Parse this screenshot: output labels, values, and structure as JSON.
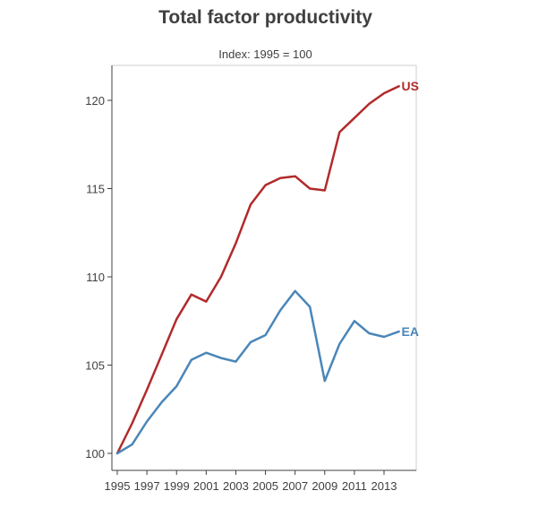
{
  "chart_data": {
    "type": "line",
    "title": "Total factor productivity",
    "subtitle": "Index: 1995 = 100",
    "xlabel": "",
    "ylabel": "",
    "xlim": [
      1995,
      2015
    ],
    "ylim": [
      99.5,
      122
    ],
    "x_ticks": [
      "1995",
      "1997",
      "1999",
      "2001",
      "2003",
      "2005",
      "2007",
      "2009",
      "2011",
      "2013"
    ],
    "y_ticks": [
      "100",
      "105",
      "110",
      "115",
      "120"
    ],
    "grid": false,
    "x": [
      1995,
      1996,
      1997,
      1998,
      1999,
      2000,
      2001,
      2002,
      2003,
      2004,
      2005,
      2006,
      2007,
      2008,
      2009,
      2010,
      2011,
      2012,
      2013,
      2014
    ],
    "series": [
      {
        "name": "US",
        "color": "#b22a2a",
        "values": [
          100.0,
          101.7,
          103.6,
          105.6,
          107.6,
          109.0,
          108.6,
          110.0,
          111.9,
          114.1,
          115.2,
          115.6,
          115.7,
          115.0,
          114.9,
          118.2,
          119.0,
          119.8,
          120.4,
          120.8
        ]
      },
      {
        "name": "EA",
        "color": "#4a86b8",
        "values": [
          100.0,
          100.5,
          101.8,
          102.9,
          103.8,
          105.3,
          105.7,
          105.4,
          105.2,
          106.3,
          106.7,
          108.1,
          109.2,
          108.3,
          104.1,
          106.2,
          107.5,
          106.8,
          106.6,
          106.9
        ]
      }
    ]
  }
}
